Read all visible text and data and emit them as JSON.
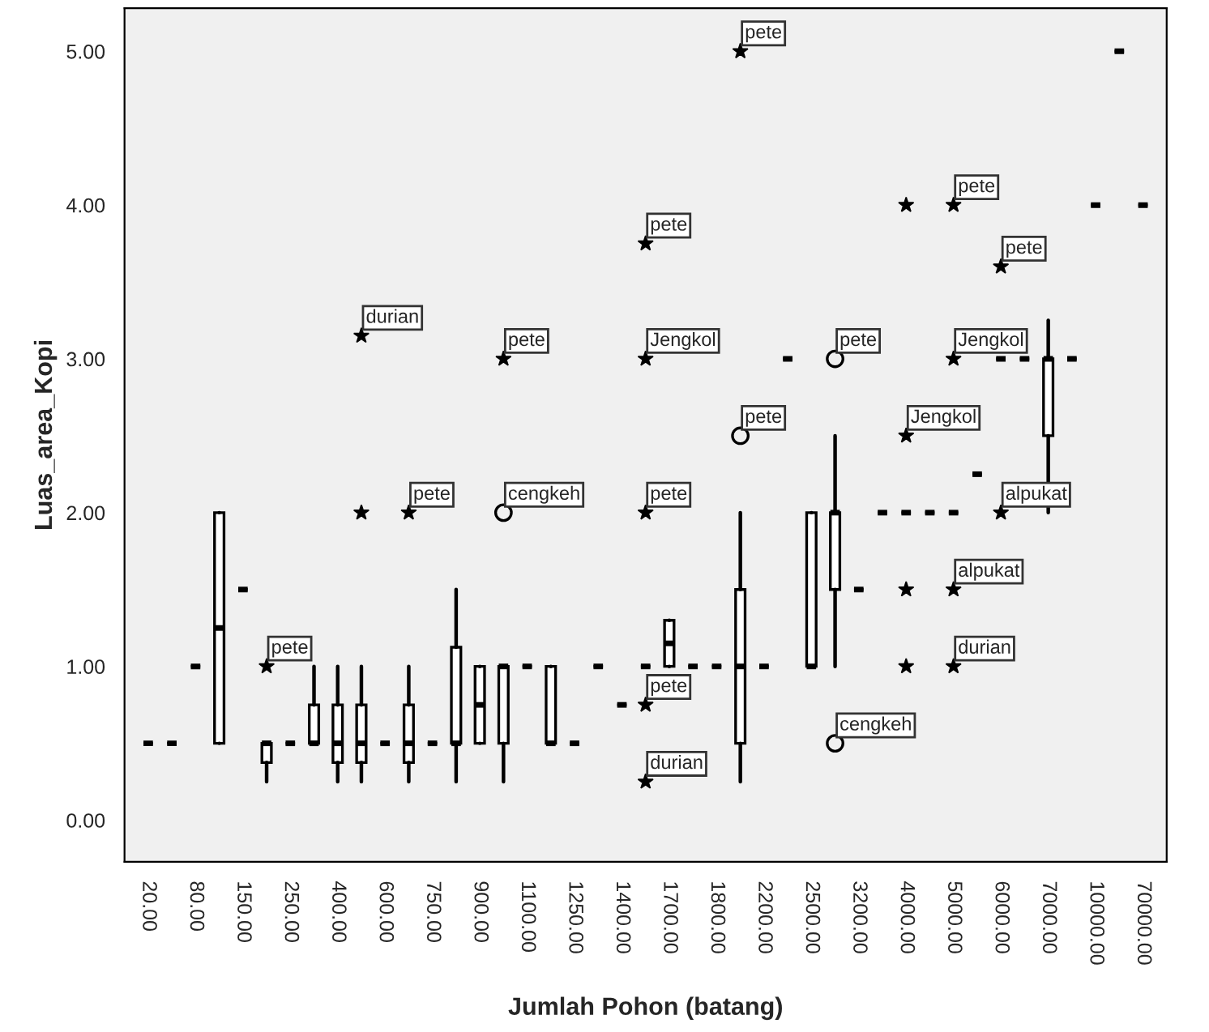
{
  "chart_data": {
    "type": "box",
    "xlabel": "Jumlah Pohon (batang)",
    "ylabel": "Luas_area_Kopi",
    "categories": [
      "20.00",
      null,
      "80.00",
      null,
      "150.00",
      null,
      "250.00",
      null,
      "400.00",
      null,
      "600.00",
      null,
      "750.00",
      null,
      "900.00",
      null,
      "1100.00",
      null,
      "1250.00",
      null,
      "1400.00",
      null,
      "1700.00",
      null,
      "1800.00",
      null,
      "2200.00",
      null,
      "2500.00",
      null,
      "3200.00",
      null,
      "4000.00",
      null,
      "5000.00",
      null,
      "6000.00",
      null,
      "7000.00",
      null,
      "10000.00",
      null,
      "70000.00"
    ],
    "ylim": [
      -0.27,
      5.28
    ],
    "yticks": [
      {
        "value": 0,
        "label": "0.00"
      },
      {
        "value": 1,
        "label": "1.00"
      },
      {
        "value": 2,
        "label": "2.00"
      },
      {
        "value": 3,
        "label": "3.00"
      },
      {
        "value": 4,
        "label": "4.00"
      },
      {
        "value": 5,
        "label": "5.00"
      }
    ],
    "grid": false,
    "legend": false,
    "boxes": [
      {
        "low": 0.5,
        "q1": 0.5,
        "median": 0.5,
        "q3": 0.5,
        "high": 0.5
      },
      {
        "low": 0.5,
        "q1": 0.5,
        "median": 0.5,
        "q3": 0.5,
        "high": 0.5
      },
      {
        "low": 1,
        "q1": 1,
        "median": 1,
        "q3": 1,
        "high": 1
      },
      {
        "low": 0.5,
        "q1": 0.5,
        "median": 1.25,
        "q3": 2,
        "high": 2
      },
      {
        "low": 1.5,
        "q1": 1.5,
        "median": 1.5,
        "q3": 1.5,
        "high": 1.5
      },
      {
        "low": 0.25,
        "q1": 0.375,
        "median": 0.5,
        "q3": 0.5,
        "high": 0.5,
        "outliers": [
          1
        ]
      },
      {
        "low": 0.5,
        "q1": 0.5,
        "median": 0.5,
        "q3": 0.5,
        "high": 0.5
      },
      {
        "low": 0.5,
        "q1": 0.5,
        "median": 0.5,
        "q3": 0.75,
        "high": 1
      },
      {
        "low": 0.25,
        "q1": 0.375,
        "median": 0.5,
        "q3": 0.75,
        "high": 1
      },
      {
        "low": 0.25,
        "q1": 0.375,
        "median": 0.5,
        "q3": 0.75,
        "high": 1,
        "outliers": [
          2,
          3.15
        ]
      },
      {
        "low": 0.5,
        "q1": 0.5,
        "median": 0.5,
        "q3": 0.5,
        "high": 0.5
      },
      {
        "low": 0.25,
        "q1": 0.375,
        "median": 0.5,
        "q3": 0.75,
        "high": 1,
        "outliers": [
          2
        ]
      },
      {
        "low": 0.5,
        "q1": 0.5,
        "median": 0.5,
        "q3": 0.5,
        "high": 0.5
      },
      {
        "low": 0.25,
        "q1": 0.5,
        "median": 0.5,
        "q3": 1.125,
        "high": 1.5
      },
      {
        "low": 0.5,
        "q1": 0.5,
        "median": 0.75,
        "q3": 1,
        "high": 1
      },
      {
        "low": 0.25,
        "q1": 0.5,
        "median": 1,
        "q3": 1,
        "high": 1,
        "outliers": [
          2,
          3
        ]
      },
      {
        "low": 1,
        "q1": 1,
        "median": 1,
        "q3": 1,
        "high": 1
      },
      {
        "low": 0.5,
        "q1": 0.5,
        "median": 0.5,
        "q3": 1,
        "high": 1
      },
      {
        "low": 0.5,
        "q1": 0.5,
        "median": 0.5,
        "q3": 0.5,
        "high": 0.5
      },
      {
        "low": 1,
        "q1": 1,
        "median": 1,
        "q3": 1,
        "high": 1
      },
      {
        "low": 0.75,
        "q1": 0.75,
        "median": 0.75,
        "q3": 0.75,
        "high": 0.75
      },
      {
        "low": 1,
        "q1": 1,
        "median": 1,
        "q3": 1,
        "high": 1,
        "outliers": [
          0.25,
          0.75,
          2,
          3,
          3.75
        ]
      },
      {
        "low": 1,
        "q1": 1,
        "median": 1.15,
        "q3": 1.3,
        "high": 1.3
      },
      {
        "low": 1,
        "q1": 1,
        "median": 1,
        "q3": 1,
        "high": 1
      },
      {
        "low": 1,
        "q1": 1,
        "median": 1,
        "q3": 1,
        "high": 1
      },
      {
        "low": 0.25,
        "q1": 0.5,
        "median": 1,
        "q3": 1.5,
        "high": 2,
        "outliers": [
          2.5,
          5
        ]
      },
      {
        "low": 1,
        "q1": 1,
        "median": 1,
        "q3": 1,
        "high": 1
      },
      {
        "low": 3,
        "q1": 3,
        "median": 3,
        "q3": 3,
        "high": 3
      },
      {
        "low": 1,
        "q1": 1,
        "median": 1,
        "q3": 2,
        "high": 2
      },
      {
        "low": 1,
        "q1": 1.5,
        "median": 2,
        "q3": 2,
        "high": 2.5,
        "outliers": [
          0.5,
          3
        ]
      },
      {
        "low": 1.5,
        "q1": 1.5,
        "median": 1.5,
        "q3": 1.5,
        "high": 1.5
      },
      {
        "low": 2,
        "q1": 2,
        "median": 2,
        "q3": 2,
        "high": 2
      },
      {
        "low": 2,
        "q1": 2,
        "median": 2,
        "q3": 2,
        "high": 2,
        "outliers": [
          1,
          1.5,
          2.5,
          4
        ]
      },
      {
        "low": 2,
        "q1": 2,
        "median": 2,
        "q3": 2,
        "high": 2
      },
      {
        "low": 2,
        "q1": 2,
        "median": 2,
        "q3": 2,
        "high": 2,
        "outliers": [
          1,
          1.5,
          3,
          4
        ]
      },
      {
        "low": 2.25,
        "q1": 2.25,
        "median": 2.25,
        "q3": 2.25,
        "high": 2.25
      },
      {
        "low": 3,
        "q1": 3,
        "median": 3,
        "q3": 3,
        "high": 3,
        "outliers": [
          2,
          3.6
        ]
      },
      {
        "low": 3,
        "q1": 3,
        "median": 3,
        "q3": 3,
        "high": 3
      },
      {
        "low": 2,
        "q1": 2.5,
        "median": 3,
        "q3": 3,
        "high": 3.25
      },
      {
        "low": 3,
        "q1": 3,
        "median": 3,
        "q3": 3,
        "high": 3
      },
      {
        "low": 4,
        "q1": 4,
        "median": 4,
        "q3": 4,
        "high": 4
      },
      {
        "low": 5,
        "q1": 5,
        "median": 5,
        "q3": 5,
        "high": 5
      },
      {
        "low": 4,
        "q1": 4,
        "median": 4,
        "q3": 4,
        "high": 4
      }
    ],
    "annotations": [
      "pete",
      null,
      "durian",
      "pete",
      "cengkeh",
      "pete",
      "durian",
      "pete",
      "pete",
      "Jengkol",
      "pete",
      "pete",
      "pete",
      "cengkeh",
      "pete",
      null,
      null,
      "Jengkol",
      null,
      "durian",
      "alpukat",
      "Jengkol",
      "pete",
      "alpukat",
      "pete"
    ]
  }
}
